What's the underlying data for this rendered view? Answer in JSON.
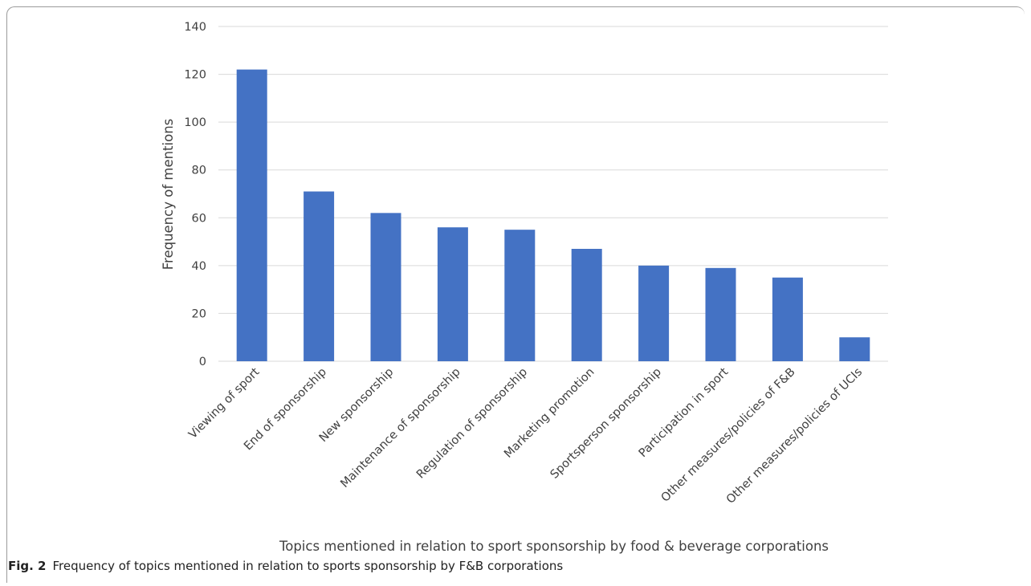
{
  "chart_data": {
    "type": "bar",
    "categories": [
      "Viewing of sport",
      "End of sponsorship",
      "New sponsorship",
      "Maintenance of sponsorship",
      "Regulation of sponsorship",
      "Marketing promotion",
      "Sportsperson sponsorship",
      "Participation in sport",
      "Other measures/policies of F&B",
      "Other measures/policies of UCIs"
    ],
    "values": [
      122,
      71,
      62,
      56,
      55,
      47,
      40,
      39,
      35,
      10
    ],
    "ylim": [
      0,
      140
    ],
    "yticks": [
      0,
      20,
      40,
      60,
      80,
      100,
      120,
      140
    ],
    "xlabel": "Topics mentioned in relation to sport sponsorship by food & beverage corporations",
    "ylabel": "Frequency of mentions",
    "grid": true,
    "bar_color": "#4472c4"
  },
  "caption": {
    "label": "Fig. 2",
    "text": "Frequency of topics mentioned in relation to sports sponsorship by F&B corporations"
  }
}
